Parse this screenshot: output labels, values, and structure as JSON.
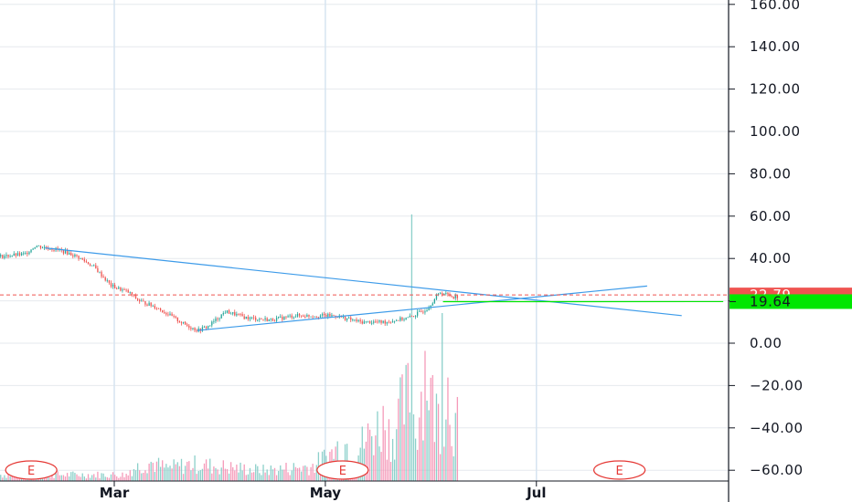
{
  "chart_data": {
    "type": "candlestick",
    "y_axis": {
      "range": [
        -64,
        162
      ],
      "ticks": [
        {
          "value": 160,
          "label": "160.00"
        },
        {
          "value": 140,
          "label": "140.00"
        },
        {
          "value": 120,
          "label": "120.00"
        },
        {
          "value": 100,
          "label": "100.00"
        },
        {
          "value": 80,
          "label": "80.00"
        },
        {
          "value": 60,
          "label": "60.00"
        },
        {
          "value": 40,
          "label": "40.00"
        },
        {
          "value": 20,
          "label": "20.00"
        },
        {
          "value": 0,
          "label": "0.00"
        },
        {
          "value": -20,
          "label": "−20.00"
        },
        {
          "value": -40,
          "label": "−40.00"
        },
        {
          "value": -60,
          "label": "−60.00"
        }
      ]
    },
    "x_axis": {
      "ticks": [
        {
          "day": 0,
          "label": "Mar"
        },
        {
          "day": 61,
          "label": "May"
        },
        {
          "day": 122,
          "label": "Jul"
        }
      ]
    },
    "grid": true,
    "price_tags": [
      {
        "value": 22.79,
        "label": "22.79",
        "color": "#ef5350",
        "dashed_line": true
      },
      {
        "value": 19.64,
        "label": "19.64",
        "color": "#00e600",
        "dashed_line": false
      }
    ],
    "earnings_markers": [
      {
        "day": -24,
        "label": "E"
      },
      {
        "day": 66,
        "label": "E"
      },
      {
        "day": 146,
        "label": "E"
      }
    ],
    "price_series": [
      {
        "day": -33,
        "value": 41
      },
      {
        "day": -26,
        "value": 42
      },
      {
        "day": -23,
        "value": 46
      },
      {
        "day": -16,
        "value": 44
      },
      {
        "day": -11,
        "value": 41
      },
      {
        "day": -6,
        "value": 36
      },
      {
        "day": -1,
        "value": 27
      },
      {
        "day": 4,
        "value": 24
      },
      {
        "day": 7,
        "value": 20
      },
      {
        "day": 12,
        "value": 17
      },
      {
        "day": 15,
        "value": 14
      },
      {
        "day": 20,
        "value": 9
      },
      {
        "day": 24,
        "value": 6
      },
      {
        "day": 27,
        "value": 8
      },
      {
        "day": 32,
        "value": 15
      },
      {
        "day": 38,
        "value": 12
      },
      {
        "day": 45,
        "value": 11
      },
      {
        "day": 52,
        "value": 13
      },
      {
        "day": 59,
        "value": 13
      },
      {
        "day": 64,
        "value": 13
      },
      {
        "day": 66,
        "value": 12
      },
      {
        "day": 71,
        "value": 10
      },
      {
        "day": 78,
        "value": 10
      },
      {
        "day": 85,
        "value": 12
      },
      {
        "day": 90,
        "value": 16
      },
      {
        "day": 94,
        "value": 24
      },
      {
        "day": 98,
        "value": 22
      }
    ],
    "trend_lines": [
      {
        "color": "#3d9be9",
        "from": {
          "day": -20,
          "value": 45
        },
        "to": {
          "day": 164,
          "value": 13
        }
      },
      {
        "color": "#3d9be9",
        "from": {
          "day": 24,
          "value": 6
        },
        "to": {
          "day": 154,
          "value": 27
        }
      },
      {
        "color": "#00e600",
        "from": {
          "day": 95,
          "value": 19.6
        },
        "to": {
          "day": 176,
          "value": 19.64
        }
      }
    ],
    "volume_series": [
      {
        "day": 4,
        "value": 5
      },
      {
        "day": 10,
        "value": 9
      },
      {
        "day": 15,
        "value": 6
      },
      {
        "day": 22,
        "value": 8
      },
      {
        "day": 29,
        "value": 7
      },
      {
        "day": 36,
        "value": 6
      },
      {
        "day": 43,
        "value": 5
      },
      {
        "day": 50,
        "value": 6
      },
      {
        "day": 57,
        "value": 7
      },
      {
        "day": 62,
        "value": 12
      },
      {
        "day": 66,
        "value": 18
      },
      {
        "day": 70,
        "value": 15
      },
      {
        "day": 74,
        "value": 22
      },
      {
        "day": 78,
        "value": 28
      },
      {
        "day": 80,
        "value": 20
      },
      {
        "day": 82,
        "value": 30
      },
      {
        "day": 85,
        "value": 40
      },
      {
        "day": 87,
        "value": 24
      },
      {
        "day": 90,
        "value": 58
      },
      {
        "day": 92,
        "value": 34
      },
      {
        "day": 94,
        "value": 30
      },
      {
        "day": 96,
        "value": 46
      },
      {
        "day": 98,
        "value": 26
      }
    ]
  }
}
